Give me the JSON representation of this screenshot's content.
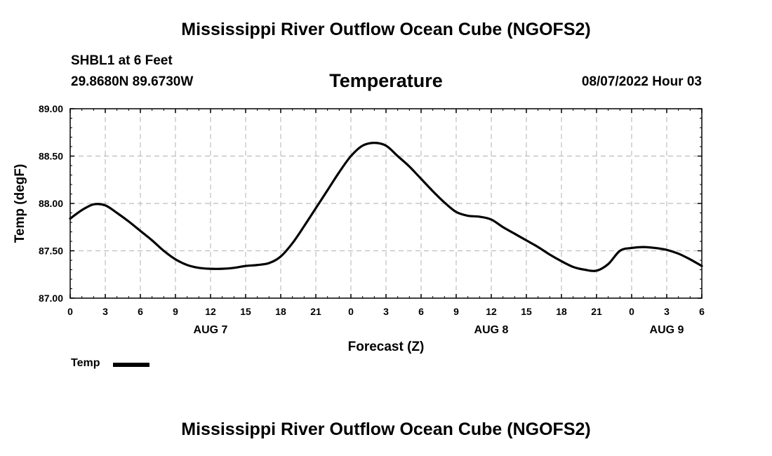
{
  "header": {
    "title": "Mississippi River Outflow Ocean Cube (NGOFS2)",
    "station": "SHBL1 at 6 Feet",
    "coordinates": "29.8680N  89.6730W",
    "variable": "Temperature",
    "datetime": "08/07/2022 Hour 03"
  },
  "footer": {
    "title": "Mississippi River Outflow Ocean Cube (NGOFS2)"
  },
  "legend": {
    "label": "Temp"
  },
  "chart_data": {
    "type": "line",
    "title": "Temperature",
    "xlabel": "Forecast (Z)",
    "ylabel": "Temp (degF)",
    "ylim": [
      87.0,
      89.0
    ],
    "xlim": [
      0,
      54
    ],
    "x_unit": "hours from 08/07/2022 00Z",
    "y_ticks": [
      "87.00",
      "87.50",
      "88.00",
      "88.50",
      "89.00"
    ],
    "y_tick_values": [
      87.0,
      87.5,
      88.0,
      88.5,
      89.0
    ],
    "x_ticks": [
      0,
      3,
      6,
      9,
      12,
      15,
      18,
      21,
      24,
      27,
      30,
      33,
      36,
      39,
      42,
      45,
      48,
      51,
      54
    ],
    "x_tick_labels": [
      "0",
      "3",
      "6",
      "9",
      "12",
      "15",
      "18",
      "21",
      "0",
      "3",
      "6",
      "9",
      "12",
      "15",
      "18",
      "21",
      "0",
      "3",
      "6"
    ],
    "date_labels": [
      {
        "x": 12,
        "label": "AUG 7"
      },
      {
        "x": 36,
        "label": "AUG 8"
      },
      {
        "x": 51,
        "label": "AUG 9"
      }
    ],
    "grid": true,
    "series": [
      {
        "name": "Temp",
        "color": "#000000",
        "x": [
          0,
          1,
          2,
          3,
          4,
          5,
          6,
          7,
          8,
          9,
          10,
          11,
          12,
          13,
          14,
          15,
          16,
          17,
          18,
          19,
          20,
          21,
          22,
          23,
          24,
          25,
          26,
          27,
          28,
          29,
          30,
          31,
          32,
          33,
          34,
          35,
          36,
          37,
          38,
          39,
          40,
          41,
          42,
          43,
          44,
          45,
          46,
          47,
          48,
          49,
          50,
          51,
          52,
          53,
          54
        ],
        "values": [
          87.84,
          87.93,
          87.99,
          87.98,
          87.9,
          87.81,
          87.71,
          87.61,
          87.5,
          87.41,
          87.35,
          87.32,
          87.31,
          87.31,
          87.32,
          87.34,
          87.35,
          87.37,
          87.44,
          87.58,
          87.76,
          87.95,
          88.14,
          88.33,
          88.5,
          88.61,
          88.64,
          88.61,
          88.5,
          88.39,
          88.26,
          88.13,
          88.01,
          87.91,
          87.87,
          87.86,
          87.83,
          87.75,
          87.68,
          87.61,
          87.54,
          87.46,
          87.39,
          87.33,
          87.3,
          87.29,
          87.36,
          87.5,
          87.53,
          87.54,
          87.53,
          87.51,
          87.47,
          87.41,
          87.34
        ]
      }
    ]
  }
}
